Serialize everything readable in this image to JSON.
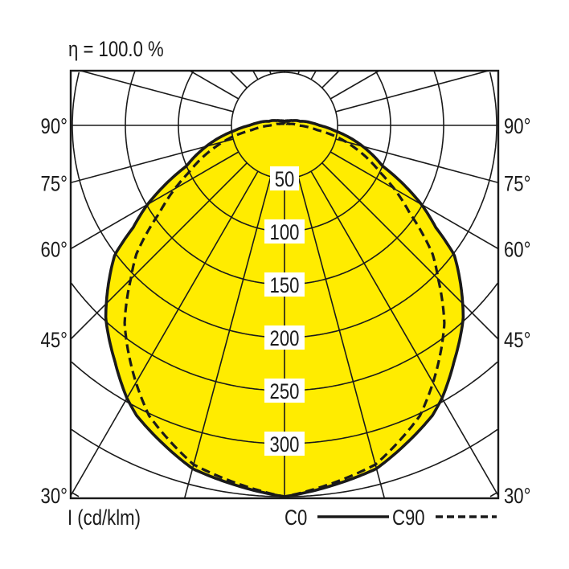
{
  "chart_data": {
    "type": "polar",
    "title": "η = 100.0 %",
    "radial_label": "I (cd/klm)",
    "radial_ticks": [
      "50",
      "100",
      "150",
      "200",
      "250",
      "300"
    ],
    "radial_tick_values": [
      50,
      100,
      150,
      200,
      250,
      300
    ],
    "angle_labels": {
      "left": [
        "90°",
        "75°",
        "60°",
        "45°",
        "30°"
      ],
      "right": [
        "90°",
        "75°",
        "60°",
        "45°",
        "30°"
      ]
    },
    "angle_label_values": [
      90,
      75,
      60,
      45,
      30
    ],
    "angle_grid_step_deg": 15,
    "grid": true,
    "fill_color": "#FFEC00",
    "line_color": "#1a1a1a",
    "legend_placement": "bottom-right",
    "series": [
      {
        "name": "C0",
        "style": "solid",
        "angles": [
          0,
          15,
          27,
          30,
          35.7,
          42.8,
          52.7,
          56,
          59.7,
          67.5,
          78.6,
          83.8,
          90,
          95,
          105,
          120,
          135,
          150,
          165,
          180
        ],
        "values": [
          350,
          335,
          307,
          297,
          274,
          248,
          201,
          172,
          151,
          100,
          65,
          48,
          33,
          26,
          15,
          9,
          6,
          5,
          4,
          4
        ]
      },
      {
        "name": "C90",
        "style": "dashed",
        "angles": [
          0,
          15,
          25,
          30,
          38.9,
          41,
          45,
          49,
          55,
          63.7,
          77.7,
          82,
          90,
          105,
          120,
          150,
          180
        ],
        "values": [
          350,
          331,
          302,
          280,
          240,
          228,
          205,
          185,
          144,
          101,
          50,
          31,
          13,
          5,
          3,
          2,
          1.5
        ]
      }
    ]
  }
}
